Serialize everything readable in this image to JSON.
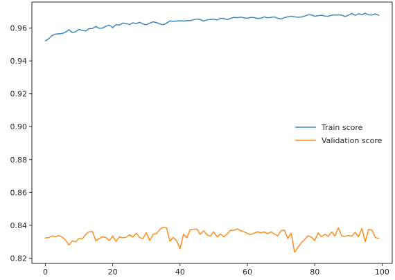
{
  "chart_data": {
    "type": "line",
    "title": "",
    "xlabel": "",
    "ylabel": "",
    "xlim": [
      -4,
      103
    ],
    "ylim": [
      0.8168,
      0.9758
    ],
    "xticks": [
      0,
      20,
      40,
      60,
      80,
      100
    ],
    "yticks": [
      0.82,
      0.84,
      0.86,
      0.88,
      0.9,
      0.92,
      0.94,
      0.96
    ],
    "ytick_labels": [
      "0.82",
      "0.84",
      "0.86",
      "0.88",
      "0.90",
      "0.92",
      "0.94",
      "0.96"
    ],
    "grid": false,
    "legend_position": "center-right",
    "series": [
      {
        "name": "Train score",
        "color": "#3a87bd",
        "x": [
          0,
          1,
          2,
          3,
          4,
          5,
          6,
          7,
          8,
          9,
          10,
          11,
          12,
          13,
          14,
          15,
          16,
          17,
          18,
          19,
          20,
          21,
          22,
          23,
          24,
          25,
          26,
          27,
          28,
          29,
          30,
          31,
          32,
          33,
          34,
          35,
          36,
          37,
          38,
          39,
          40,
          41,
          42,
          43,
          44,
          45,
          46,
          47,
          48,
          49,
          50,
          51,
          52,
          53,
          54,
          55,
          56,
          57,
          58,
          59,
          60,
          61,
          62,
          63,
          64,
          65,
          66,
          67,
          68,
          69,
          70,
          71,
          72,
          73,
          74,
          75,
          76,
          77,
          78,
          79,
          80,
          81,
          82,
          83,
          84,
          85,
          86,
          87,
          88,
          89,
          90,
          91,
          92,
          93,
          94,
          95,
          96,
          97,
          98,
          99
        ],
        "values": [
          0.9522,
          0.9535,
          0.9555,
          0.9563,
          0.9565,
          0.9567,
          0.9575,
          0.959,
          0.9572,
          0.9578,
          0.9592,
          0.9585,
          0.9582,
          0.9596,
          0.9597,
          0.961,
          0.9598,
          0.96,
          0.9611,
          0.9618,
          0.9602,
          0.9621,
          0.9618,
          0.963,
          0.9628,
          0.9621,
          0.9632,
          0.9627,
          0.9635,
          0.9625,
          0.962,
          0.963,
          0.9638,
          0.9633,
          0.9625,
          0.962,
          0.963,
          0.9643,
          0.9641,
          0.9643,
          0.9644,
          0.9643,
          0.9645,
          0.9645,
          0.965,
          0.9655,
          0.9652,
          0.9642,
          0.965,
          0.9652,
          0.9654,
          0.9649,
          0.9659,
          0.9658,
          0.9651,
          0.9659,
          0.9665,
          0.9663,
          0.9667,
          0.9662,
          0.966,
          0.9665,
          0.9664,
          0.9658,
          0.966,
          0.9668,
          0.9662,
          0.9665,
          0.9668,
          0.966,
          0.9655,
          0.9664,
          0.9668,
          0.9672,
          0.9668,
          0.9666,
          0.9667,
          0.9673,
          0.968,
          0.968,
          0.9672,
          0.9675,
          0.9678,
          0.9673,
          0.9672,
          0.9678,
          0.968,
          0.9679,
          0.9679,
          0.967,
          0.9678,
          0.9689,
          0.9677,
          0.9687,
          0.9681,
          0.969,
          0.968,
          0.9679,
          0.9686,
          0.9678
        ]
      },
      {
        "name": "Validation score",
        "color": "#ff8c1a",
        "x": [
          0,
          1,
          2,
          3,
          4,
          5,
          6,
          7,
          8,
          9,
          10,
          11,
          12,
          13,
          14,
          15,
          16,
          17,
          18,
          19,
          20,
          21,
          22,
          23,
          24,
          25,
          26,
          27,
          28,
          29,
          30,
          31,
          32,
          33,
          34,
          35,
          36,
          37,
          38,
          39,
          40,
          41,
          42,
          43,
          44,
          45,
          46,
          47,
          48,
          49,
          50,
          51,
          52,
          53,
          54,
          55,
          56,
          57,
          58,
          59,
          60,
          61,
          62,
          63,
          64,
          65,
          66,
          67,
          68,
          69,
          70,
          71,
          72,
          73,
          74,
          75,
          76,
          77,
          78,
          79,
          80,
          81,
          82,
          83,
          84,
          85,
          86,
          87,
          88,
          89,
          90,
          91,
          92,
          93,
          94,
          95,
          96,
          97,
          98,
          99
        ],
        "values": [
          0.8323,
          0.8325,
          0.8335,
          0.833,
          0.8337,
          0.8328,
          0.831,
          0.828,
          0.8305,
          0.83,
          0.832,
          0.8317,
          0.8345,
          0.836,
          0.8362,
          0.8305,
          0.832,
          0.8331,
          0.8325,
          0.8307,
          0.8335,
          0.8302,
          0.833,
          0.8324,
          0.8327,
          0.8342,
          0.8328,
          0.8352,
          0.8325,
          0.832,
          0.8355,
          0.8307,
          0.8345,
          0.835,
          0.8375,
          0.8388,
          0.8385,
          0.8302,
          0.8327,
          0.8305,
          0.8257,
          0.8345,
          0.8325,
          0.8372,
          0.8376,
          0.8377,
          0.8344,
          0.8367,
          0.8342,
          0.8334,
          0.836,
          0.8329,
          0.8347,
          0.8329,
          0.8348,
          0.837,
          0.8369,
          0.8378,
          0.8367,
          0.836,
          0.835,
          0.8343,
          0.8352,
          0.836,
          0.8354,
          0.8359,
          0.8349,
          0.836,
          0.8347,
          0.8336,
          0.8367,
          0.837,
          0.832,
          0.8352,
          0.8236,
          0.8265,
          0.8294,
          0.8313,
          0.8336,
          0.8328,
          0.8307,
          0.8354,
          0.833,
          0.8345,
          0.8332,
          0.836,
          0.8334,
          0.8385,
          0.8334,
          0.8333,
          0.8338,
          0.8333,
          0.8357,
          0.833,
          0.838,
          0.83,
          0.8375,
          0.837,
          0.8326,
          0.832
        ]
      }
    ]
  }
}
